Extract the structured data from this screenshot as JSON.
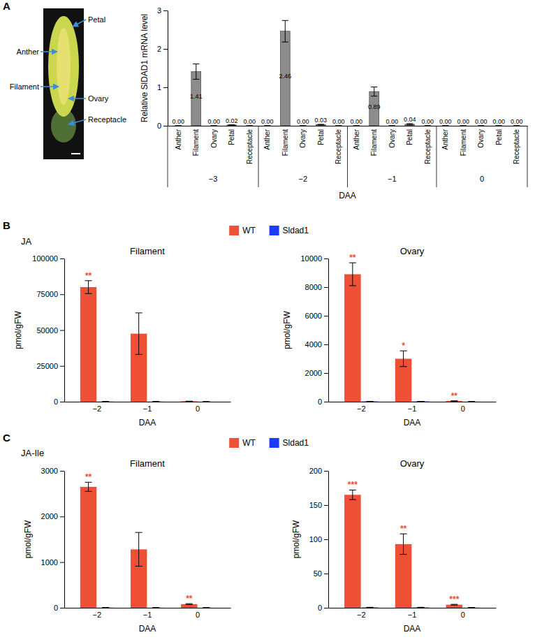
{
  "figure": {
    "panel_labels": [
      "A",
      "B",
      "C"
    ],
    "photo_labels": [
      "Petal",
      "Anther",
      "Filament",
      "Ovary",
      "Receptacle"
    ],
    "section_titles": [
      "JA",
      "JA-Ile"
    ]
  },
  "chart_data": [
    {
      "type": "bar",
      "y_label": "Relative SlDAD1 mRNA level",
      "x_label": "DAA",
      "categories": [
        "Anther",
        "Filament",
        "Ovary",
        "Petal",
        "Receptacle",
        "Anther",
        "Filament",
        "Ovary",
        "Petal",
        "Receptacle",
        "Anther",
        "Filament",
        "Ovary",
        "Petal",
        "Receptacle",
        "Anther",
        "Filament",
        "Ovary",
        "Petal",
        "Receptacle"
      ],
      "groups": [
        "−3",
        "−2",
        "−1",
        "0"
      ],
      "values": [
        0,
        1.41,
        0,
        0.02,
        0,
        0,
        2.46,
        0,
        0.03,
        0,
        0,
        0.89,
        0,
        0.04,
        0,
        0,
        0,
        0,
        0,
        0
      ],
      "value_labels": [
        "0.00",
        "1.41",
        "0.00",
        "0.02",
        "0.00",
        "0.00",
        "2.46",
        "0.00",
        "0.03",
        "0.00",
        "0.00",
        "0.89",
        "0.00",
        "0.04",
        "0.00",
        "0.00",
        "0.00",
        "0.00",
        "0.00",
        "0.00"
      ],
      "errors": [
        0,
        0.2,
        0,
        0.005,
        0,
        0,
        0.28,
        0,
        0.008,
        0,
        0,
        0.12,
        0,
        0.015,
        0,
        0,
        0,
        0,
        0,
        0
      ],
      "color": "#8c8c8c",
      "data_labels": true,
      "ylim": [
        0,
        3
      ],
      "yticks": [
        0,
        1,
        2,
        3
      ]
    },
    {
      "type": "bar",
      "title": "Filament",
      "y_label": "pmol/gFW",
      "x_label": "DAA",
      "categories": [
        "−2",
        "−1",
        "0"
      ],
      "legend": "top",
      "ylim": [
        0,
        100000
      ],
      "yticks": [
        0,
        25000,
        50000,
        75000,
        100000
      ],
      "series": [
        {
          "name": "WT",
          "color": "#ee5035",
          "values": [
            80000,
            47500,
            300
          ],
          "errors": [
            4500,
            14500,
            60
          ],
          "annotations": [
            "**",
            null,
            null
          ]
        },
        {
          "name": "Sldad1",
          "color": "#1a3cff",
          "values": [
            100,
            80,
            20
          ],
          "errors": [
            20,
            20,
            5
          ]
        }
      ]
    },
    {
      "type": "bar",
      "title": "Ovary",
      "y_label": "pmol/gFW",
      "x_label": "DAA",
      "categories": [
        "−2",
        "−1",
        "0"
      ],
      "ylim": [
        0,
        10000
      ],
      "yticks": [
        0,
        2000,
        4000,
        6000,
        8000,
        10000
      ],
      "series": [
        {
          "color": "#ee5035",
          "values": [
            8900,
            3000,
            50
          ],
          "errors": [
            800,
            550,
            10
          ],
          "annotations": [
            "**",
            "*",
            "**"
          ]
        },
        {
          "color": "#1a3cff",
          "values": [
            20,
            20,
            5
          ],
          "errors": [
            5,
            5,
            2
          ]
        }
      ]
    },
    {
      "type": "bar",
      "title": "Filament",
      "y_label": "pmol/gFW",
      "x_label": "DAA",
      "categories": [
        "−2",
        "−1",
        "0"
      ],
      "legend": "top",
      "ylim": [
        0,
        3000
      ],
      "yticks": [
        0,
        1000,
        2000,
        3000
      ],
      "series": [
        {
          "name": "WT",
          "color": "#ee5035",
          "values": [
            2650,
            1280,
            80
          ],
          "errors": [
            100,
            370,
            10
          ],
          "annotations": [
            "**",
            null,
            "**"
          ]
        },
        {
          "name": "Sldad1",
          "color": "#1a3cff",
          "values": [
            3,
            2,
            1
          ],
          "errors": [
            1,
            1,
            0.5
          ]
        }
      ]
    },
    {
      "type": "bar",
      "title": "Ovary",
      "y_label": "pmol/gFW",
      "x_label": "DAA",
      "categories": [
        "−2",
        "−1",
        "0"
      ],
      "ylim": [
        0,
        200
      ],
      "yticks": [
        0,
        50,
        100,
        150,
        200
      ],
      "series": [
        {
          "color": "#ee5035",
          "values": [
            165,
            93,
            4.5
          ],
          "errors": [
            7,
            15,
            0.5
          ],
          "annotations": [
            "***",
            "**",
            "***"
          ]
        },
        {
          "color": "#1a3cff",
          "values": [
            0.5,
            0.5,
            0.2
          ],
          "errors": [
            0.2,
            0.2,
            0.1
          ]
        }
      ]
    }
  ]
}
